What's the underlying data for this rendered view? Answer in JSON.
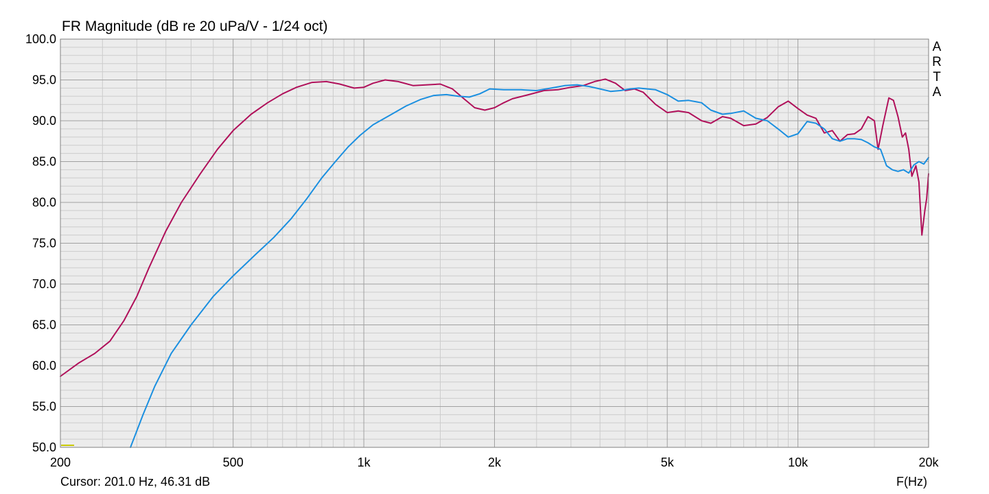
{
  "title": "FR Magnitude (dB re 20 uPa/V - 1/24 oct)",
  "cursor_readout": "Cursor: 201.0 Hz, 46.31 dB",
  "brand_letters": [
    "A",
    "R",
    "T",
    "A"
  ],
  "colors": {
    "plot_background": "#ececec",
    "major_grid": "#a0a0a0",
    "minor_grid": "#cccccc",
    "series_crimson": "#b0105a",
    "series_blue": "#1a8fe0",
    "cursor_marker": "#c8c800"
  },
  "chart_data": {
    "type": "line",
    "title": "FR Magnitude (dB re 20 uPa/V - 1/24 oct)",
    "xlabel": "F(Hz)",
    "ylabel": "",
    "xscale": "log",
    "xlim": [
      200,
      20000
    ],
    "ylim": [
      50,
      100
    ],
    "grid": true,
    "x_tick_labels": [
      {
        "value": 200,
        "label": "200"
      },
      {
        "value": 500,
        "label": "500"
      },
      {
        "value": 1000,
        "label": "1k"
      },
      {
        "value": 2000,
        "label": "2k"
      },
      {
        "value": 5000,
        "label": "5k"
      },
      {
        "value": 10000,
        "label": "10k"
      },
      {
        "value": 20000,
        "label": "20k"
      }
    ],
    "y_tick_labels": [
      {
        "value": 100,
        "label": "100.0"
      },
      {
        "value": 95,
        "label": "95.0"
      },
      {
        "value": 90,
        "label": "90.0"
      },
      {
        "value": 85,
        "label": "85.0"
      },
      {
        "value": 80,
        "label": "80.0"
      },
      {
        "value": 75,
        "label": "75.0"
      },
      {
        "value": 70,
        "label": "70.0"
      },
      {
        "value": 65,
        "label": "65.0"
      },
      {
        "value": 60,
        "label": "60.0"
      },
      {
        "value": 55,
        "label": "55.0"
      },
      {
        "value": 50,
        "label": "50.0"
      }
    ],
    "series": [
      {
        "color": "#b0105a",
        "points": [
          [
            200,
            58.7
          ],
          [
            220,
            60.3
          ],
          [
            240,
            61.5
          ],
          [
            260,
            63.0
          ],
          [
            280,
            65.5
          ],
          [
            300,
            68.5
          ],
          [
            320,
            72.0
          ],
          [
            350,
            76.5
          ],
          [
            380,
            80.0
          ],
          [
            420,
            83.5
          ],
          [
            460,
            86.5
          ],
          [
            500,
            88.8
          ],
          [
            550,
            90.8
          ],
          [
            600,
            92.2
          ],
          [
            650,
            93.3
          ],
          [
            700,
            94.1
          ],
          [
            760,
            94.7
          ],
          [
            820,
            94.8
          ],
          [
            880,
            94.5
          ],
          [
            950,
            94.0
          ],
          [
            1000,
            94.1
          ],
          [
            1050,
            94.6
          ],
          [
            1120,
            95.0
          ],
          [
            1200,
            94.8
          ],
          [
            1300,
            94.3
          ],
          [
            1400,
            94.4
          ],
          [
            1500,
            94.5
          ],
          [
            1600,
            93.9
          ],
          [
            1700,
            92.7
          ],
          [
            1800,
            91.6
          ],
          [
            1900,
            91.3
          ],
          [
            2000,
            91.6
          ],
          [
            2100,
            92.2
          ],
          [
            2200,
            92.7
          ],
          [
            2400,
            93.2
          ],
          [
            2600,
            93.7
          ],
          [
            2800,
            93.8
          ],
          [
            3000,
            94.1
          ],
          [
            3200,
            94.3
          ],
          [
            3400,
            94.8
          ],
          [
            3600,
            95.1
          ],
          [
            3800,
            94.6
          ],
          [
            4000,
            93.7
          ],
          [
            4200,
            93.9
          ],
          [
            4400,
            93.5
          ],
          [
            4700,
            92.0
          ],
          [
            5000,
            91.0
          ],
          [
            5300,
            91.2
          ],
          [
            5600,
            91.0
          ],
          [
            6000,
            90.0
          ],
          [
            6300,
            89.7
          ],
          [
            6700,
            90.5
          ],
          [
            7000,
            90.3
          ],
          [
            7500,
            89.4
          ],
          [
            8000,
            89.6
          ],
          [
            8500,
            90.4
          ],
          [
            9000,
            91.7
          ],
          [
            9500,
            92.4
          ],
          [
            10000,
            91.5
          ],
          [
            10500,
            90.7
          ],
          [
            11000,
            90.3
          ],
          [
            11500,
            88.5
          ],
          [
            12000,
            88.8
          ],
          [
            12500,
            87.5
          ],
          [
            13000,
            88.3
          ],
          [
            13500,
            88.4
          ],
          [
            14000,
            89.0
          ],
          [
            14500,
            90.5
          ],
          [
            15000,
            90.0
          ],
          [
            15300,
            86.5
          ],
          [
            15700,
            89.5
          ],
          [
            16200,
            92.8
          ],
          [
            16600,
            92.5
          ],
          [
            17000,
            90.5
          ],
          [
            17400,
            88.0
          ],
          [
            17700,
            88.5
          ],
          [
            18000,
            86.5
          ],
          [
            18300,
            83.2
          ],
          [
            18700,
            84.5
          ],
          [
            19000,
            82.5
          ],
          [
            19300,
            76.0
          ],
          [
            19600,
            79.0
          ],
          [
            19800,
            80.5
          ],
          [
            20000,
            83.5
          ]
        ]
      },
      {
        "color": "#1a8fe0",
        "points": [
          [
            290,
            50.0
          ],
          [
            310,
            54.0
          ],
          [
            330,
            57.5
          ],
          [
            360,
            61.5
          ],
          [
            400,
            65.0
          ],
          [
            450,
            68.5
          ],
          [
            500,
            71.0
          ],
          [
            560,
            73.5
          ],
          [
            620,
            75.7
          ],
          [
            680,
            78.0
          ],
          [
            740,
            80.5
          ],
          [
            800,
            83.0
          ],
          [
            860,
            85.0
          ],
          [
            920,
            86.8
          ],
          [
            980,
            88.2
          ],
          [
            1050,
            89.5
          ],
          [
            1150,
            90.7
          ],
          [
            1250,
            91.8
          ],
          [
            1350,
            92.6
          ],
          [
            1450,
            93.1
          ],
          [
            1550,
            93.2
          ],
          [
            1650,
            93.0
          ],
          [
            1750,
            92.9
          ],
          [
            1850,
            93.3
          ],
          [
            1950,
            93.9
          ],
          [
            2100,
            93.8
          ],
          [
            2300,
            93.8
          ],
          [
            2500,
            93.7
          ],
          [
            2700,
            94.0
          ],
          [
            2900,
            94.3
          ],
          [
            3100,
            94.4
          ],
          [
            3300,
            94.2
          ],
          [
            3500,
            93.9
          ],
          [
            3700,
            93.6
          ],
          [
            3900,
            93.7
          ],
          [
            4100,
            93.9
          ],
          [
            4300,
            94.0
          ],
          [
            4500,
            93.9
          ],
          [
            4700,
            93.8
          ],
          [
            5000,
            93.2
          ],
          [
            5300,
            92.4
          ],
          [
            5600,
            92.5
          ],
          [
            6000,
            92.2
          ],
          [
            6300,
            91.3
          ],
          [
            6700,
            90.8
          ],
          [
            7000,
            90.9
          ],
          [
            7500,
            91.2
          ],
          [
            8000,
            90.3
          ],
          [
            8500,
            90.0
          ],
          [
            9000,
            89.0
          ],
          [
            9500,
            88.0
          ],
          [
            10000,
            88.4
          ],
          [
            10500,
            89.9
          ],
          [
            11000,
            89.7
          ],
          [
            11500,
            89.0
          ],
          [
            12000,
            87.8
          ],
          [
            12500,
            87.5
          ],
          [
            13000,
            87.8
          ],
          [
            13500,
            87.8
          ],
          [
            14000,
            87.7
          ],
          [
            14500,
            87.3
          ],
          [
            15000,
            86.8
          ],
          [
            15500,
            86.5
          ],
          [
            16000,
            84.5
          ],
          [
            16500,
            84.0
          ],
          [
            17000,
            83.8
          ],
          [
            17500,
            84.0
          ],
          [
            18000,
            83.6
          ],
          [
            18500,
            84.6
          ],
          [
            19000,
            85.0
          ],
          [
            19500,
            84.7
          ],
          [
            20000,
            85.5
          ]
        ]
      }
    ]
  }
}
